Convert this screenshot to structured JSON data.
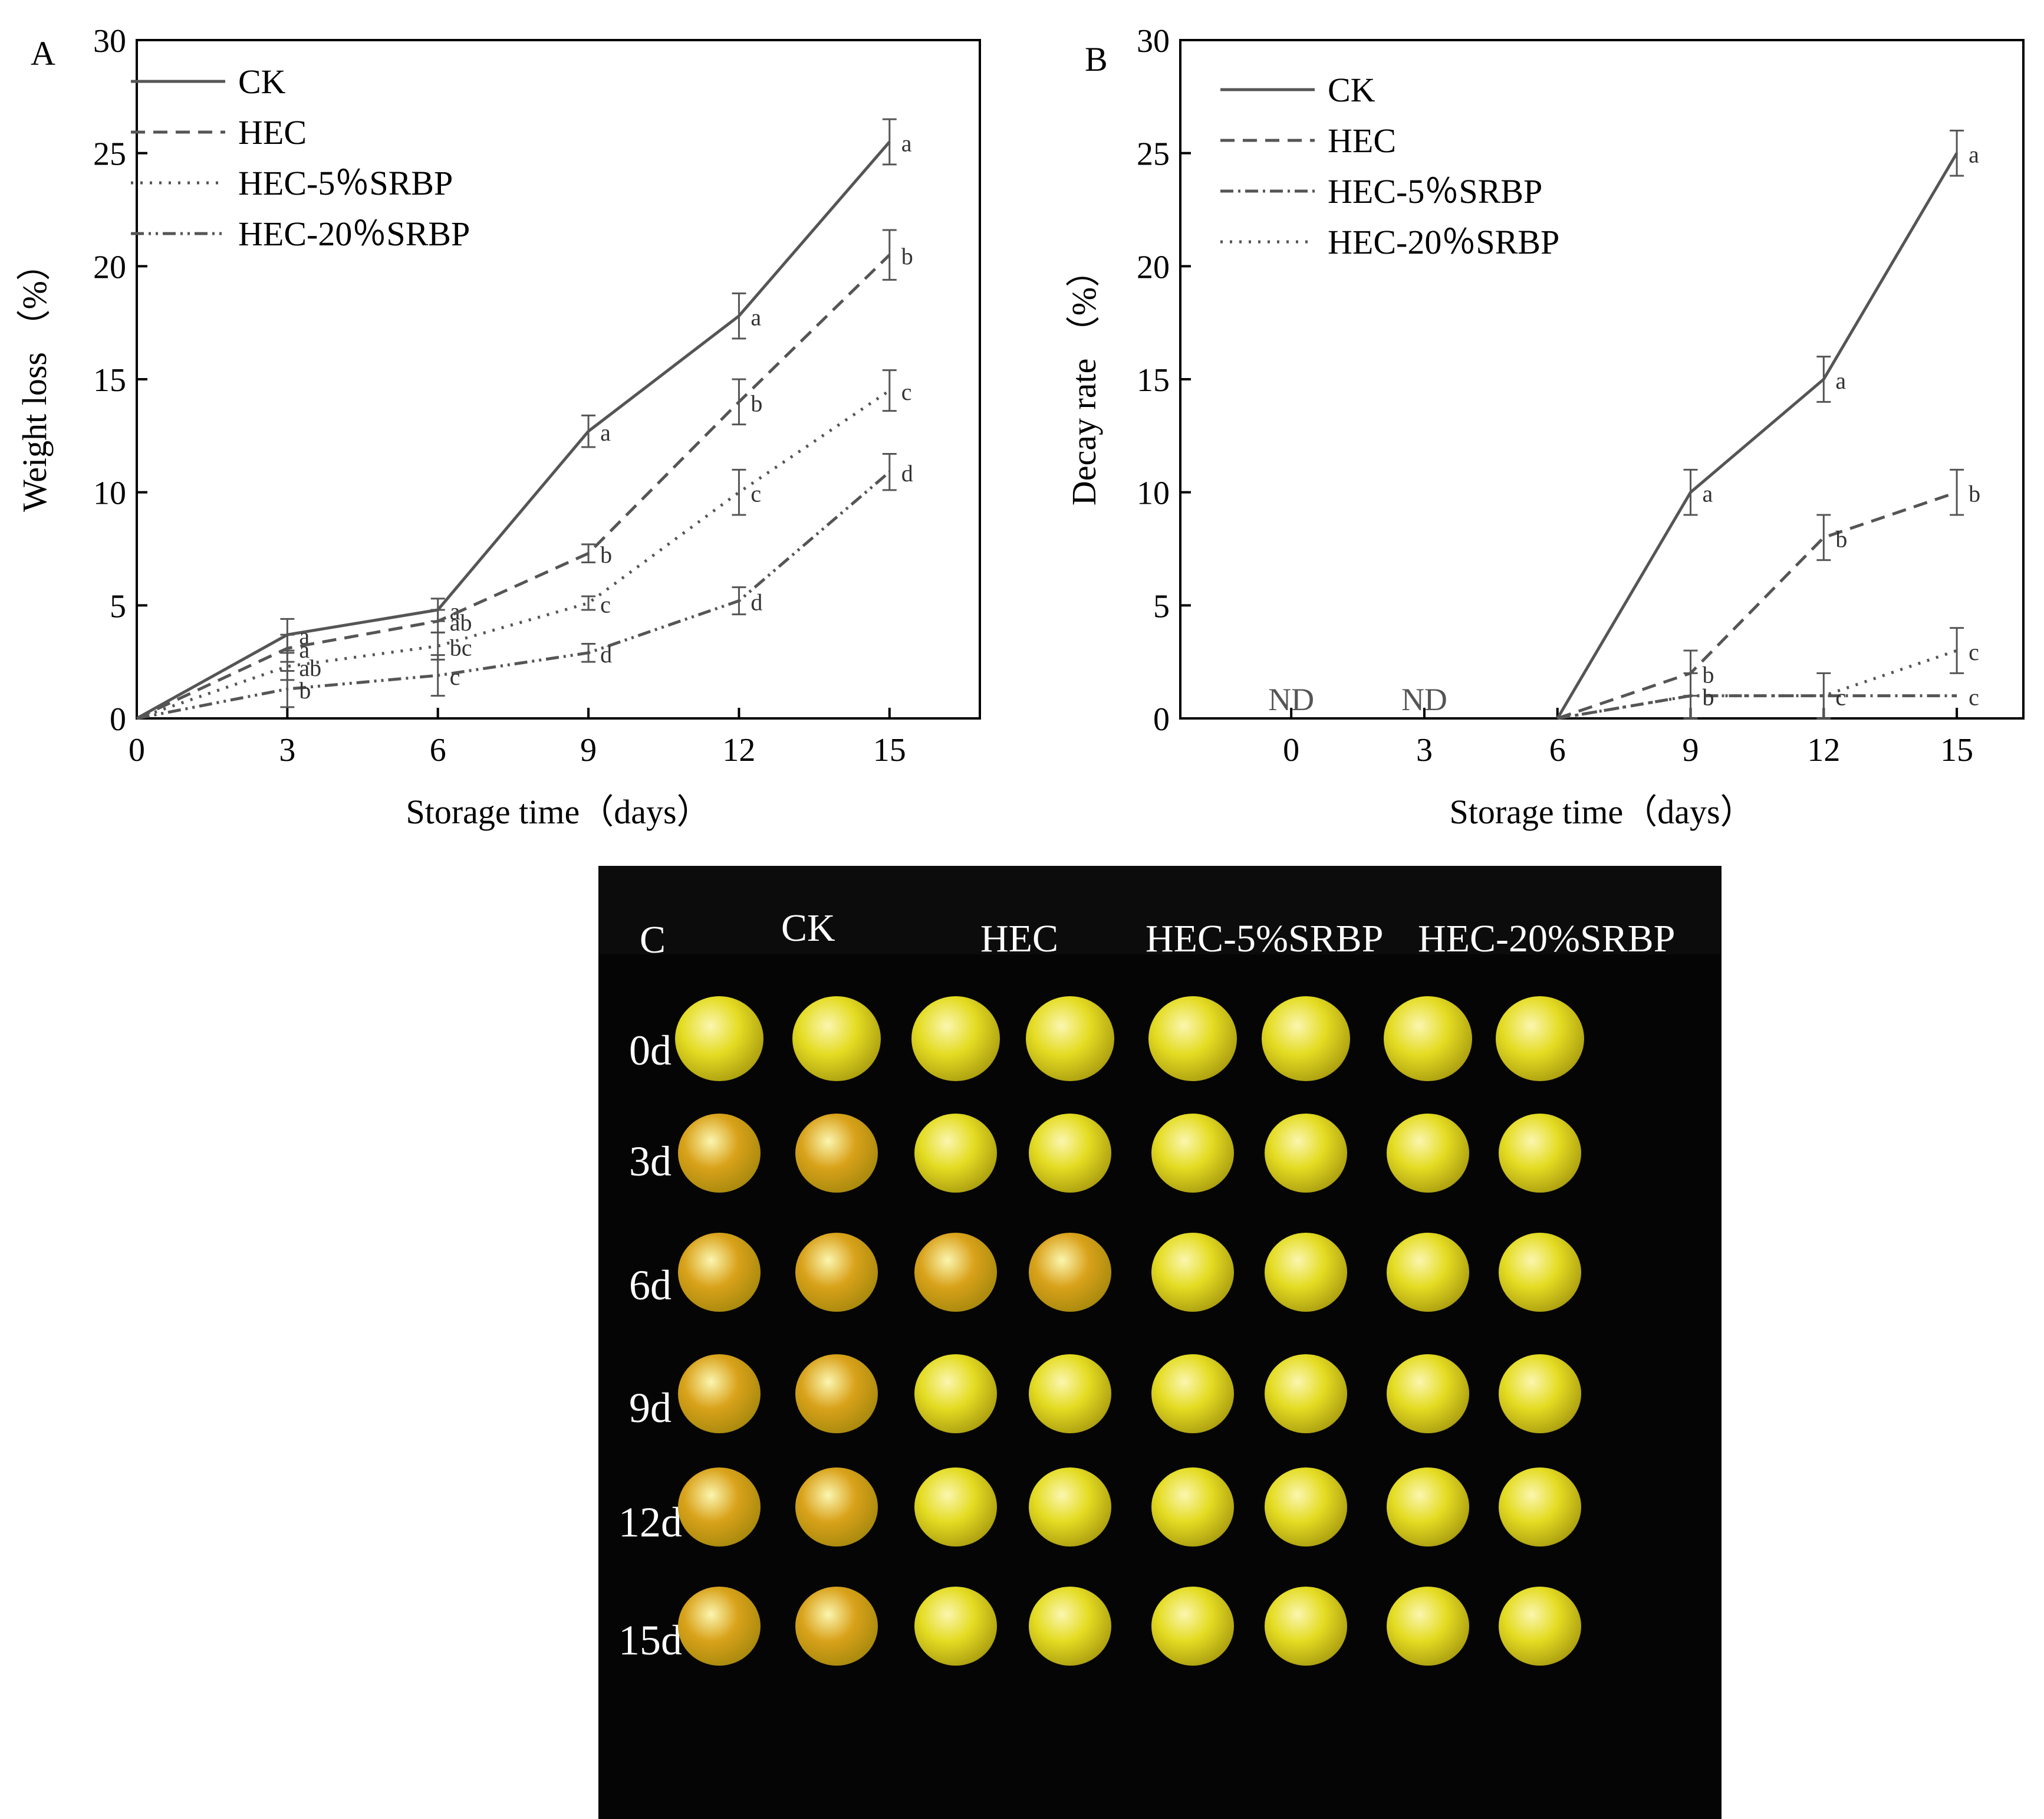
{
  "colors": {
    "axis": "#000000",
    "series": "#555555",
    "photo_background": "#050505",
    "fruit_fresh": "#e4dc22",
    "fruit_aged": "#d9a21a"
  },
  "chart_data": [
    {
      "panel": "A",
      "type": "line",
      "xlabel": "Storage time（days）",
      "ylabel": "Weight loss （%）",
      "x": [
        0,
        3,
        6,
        9,
        12,
        15
      ],
      "x_ticks": [
        "0",
        "3",
        "6",
        "9",
        "12",
        "15"
      ],
      "y_ticks": [
        "0",
        "5",
        "10",
        "15",
        "20",
        "25",
        "30"
      ],
      "xlim": [
        0,
        16.8
      ],
      "ylim": [
        0,
        30
      ],
      "legend_position": "top-left",
      "series": [
        {
          "name": "CK",
          "dash": "solid",
          "values": [
            0,
            3.7,
            4.8,
            12.7,
            17.8,
            25.5
          ],
          "errors": [
            0,
            0.7,
            0.5,
            0.7,
            1.0,
            1.0
          ],
          "letters": [
            "",
            "a",
            "a",
            "a",
            "a",
            "a"
          ]
        },
        {
          "name": "HEC",
          "dash": "dashed",
          "values": [
            0,
            3.1,
            4.3,
            7.3,
            14.0,
            20.5
          ],
          "errors": [
            0,
            0.6,
            0.5,
            0.4,
            1.0,
            1.1
          ],
          "letters": [
            "",
            "a",
            "ab",
            "b",
            "b",
            "b"
          ]
        },
        {
          "name": "HEC-5％SRBP",
          "dash": "dotted",
          "values": [
            0,
            2.3,
            3.2,
            5.1,
            10.0,
            14.5
          ],
          "errors": [
            0,
            0.6,
            0.6,
            0.3,
            1.0,
            0.9
          ],
          "letters": [
            "",
            "ab",
            "bc",
            "c",
            "c",
            "c"
          ]
        },
        {
          "name": "HEC-20％SRBP",
          "dash": "dashdotdot",
          "values": [
            0,
            1.3,
            1.9,
            2.9,
            5.2,
            10.9
          ],
          "errors": [
            0,
            0.8,
            0.9,
            0.4,
            0.6,
            0.8
          ],
          "letters": [
            "",
            "b",
            "c",
            "d",
            "d",
            "d"
          ]
        }
      ]
    },
    {
      "panel": "B",
      "type": "line",
      "xlabel": "Storage time（days）",
      "ylabel": "Decay rate （%）",
      "x": [
        0,
        3,
        6,
        9,
        12,
        15
      ],
      "x_ticks": [
        "0",
        "3",
        "6",
        "9",
        "12",
        "15"
      ],
      "y_ticks": [
        "0",
        "5",
        "10",
        "15",
        "20",
        "25",
        "30"
      ],
      "xlim": [
        -2.5,
        16.5
      ],
      "ylim": [
        0,
        30
      ],
      "legend_position": "top-left",
      "annotations": [
        {
          "x": 0,
          "text": "ND"
        },
        {
          "x": 3,
          "text": "ND"
        }
      ],
      "series": [
        {
          "name": "CK",
          "dash": "solid",
          "start_index": 2,
          "values": [
            0,
            0,
            0,
            10,
            15,
            25
          ],
          "errors": [
            0,
            0,
            0,
            1.0,
            1.0,
            1.0
          ],
          "letters": [
            "",
            "",
            "",
            "a",
            "a",
            "a"
          ]
        },
        {
          "name": "HEC",
          "dash": "dashed",
          "start_index": 2,
          "values": [
            0,
            0,
            0,
            2,
            8,
            10
          ],
          "errors": [
            0,
            0,
            0,
            1.0,
            1.0,
            1.0
          ],
          "letters": [
            "",
            "",
            "",
            "b",
            "b",
            "b"
          ]
        },
        {
          "name": "HEC-5％SRBP",
          "dash": "dashdot",
          "start_index": 2,
          "values": [
            0,
            0,
            0,
            1,
            1,
            1
          ],
          "errors": [
            0,
            0,
            0,
            0,
            0,
            0
          ],
          "letters": [
            "",
            "",
            "",
            "b",
            "c",
            "c"
          ]
        },
        {
          "name": "HEC-20％SRBP",
          "dash": "dotted",
          "start_index": 2,
          "values": [
            0,
            0,
            0,
            1,
            1,
            3
          ],
          "errors": [
            0,
            0,
            0,
            1.0,
            1.0,
            1.0
          ],
          "letters": [
            "",
            "",
            "",
            "b",
            "c",
            "c"
          ]
        }
      ]
    }
  ],
  "panel_c": {
    "label": "C",
    "columns": [
      "CK",
      "HEC",
      "HEC-5%SRBP",
      "HEC-20%SRBP"
    ],
    "rows": [
      "0d",
      "3d",
      "6d",
      "9d",
      "12d",
      "15d"
    ]
  }
}
